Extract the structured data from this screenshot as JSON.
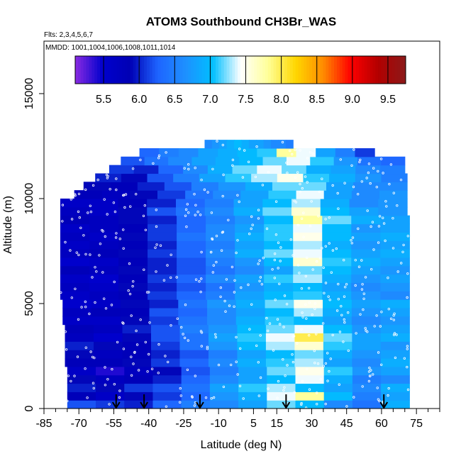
{
  "chart_data": {
    "type": "heatmap",
    "title": "ATOM3 Southbound CH3Br_WAS",
    "flights_label": "Flts: 2,3,4,5,6,7",
    "mmdd_label": "MMDD: 1001,1004,1006,1008,1011,1014",
    "xlabel": "Latitude (deg N)",
    "ylabel": "Altitude (m)",
    "xlim": [
      -85,
      85
    ],
    "ylim": [
      0,
      17500
    ],
    "x_ticks": [
      -85,
      -70,
      -55,
      -40,
      -25,
      -10,
      5,
      15,
      30,
      45,
      60,
      75
    ],
    "x_tick_labels": [
      "-85",
      "-70",
      "-55",
      "-40",
      "-25",
      "-10",
      "5",
      "15",
      "30",
      "45",
      "60",
      "75"
    ],
    "y_ticks": [
      0,
      5000,
      10000,
      15000
    ],
    "y_tick_labels": [
      "0",
      "5000",
      "10000",
      "15000"
    ],
    "colorbar": {
      "min": 5.1,
      "max": 9.75,
      "ticks": [
        5.5,
        6.0,
        6.5,
        7.0,
        7.5,
        8.0,
        8.5,
        9.0,
        9.5
      ],
      "tick_labels": [
        "5.5",
        "6.0",
        "6.5",
        "7.0",
        "7.5",
        "8.0",
        "8.5",
        "9.0",
        "9.5"
      ],
      "colors": [
        "#8a2be2",
        "#0000cd",
        "#0000b4",
        "#1e64ff",
        "#1e90ff",
        "#00bfff",
        "#ffffff",
        "#ffff99",
        "#ffd700",
        "#ff8c00",
        "#ff0000",
        "#b20000",
        "#8b1a1a"
      ]
    },
    "arrow_latitudes": [
      -54,
      -42,
      -18,
      19,
      61
    ],
    "bands": [
      {
        "alt": 200,
        "lat_min": -75,
        "lat_max": 72,
        "values": [
          6.2,
          6.1,
          6.0,
          6.3,
          6.5,
          6.6,
          6.8,
          7.2,
          7.0,
          6.6,
          6.4,
          6.9
        ]
      },
      {
        "alt": 600,
        "lat_min": -75,
        "lat_max": 72,
        "values": [
          5.8,
          5.6,
          5.9,
          6.1,
          6.3,
          6.7,
          6.9,
          7.4,
          7.8,
          7.0,
          6.5,
          6.8
        ]
      },
      {
        "alt": 1000,
        "lat_min": -75,
        "lat_max": 72,
        "values": [
          6.0,
          5.9,
          6.1,
          6.2,
          6.4,
          6.8,
          7.1,
          7.3,
          7.0,
          6.8,
          6.6,
          6.9
        ]
      },
      {
        "alt": 1400,
        "lat_min": -75,
        "lat_max": 72,
        "values": [
          5.9,
          5.7,
          5.8,
          6.0,
          6.3,
          6.6,
          6.8,
          7.0,
          7.4,
          6.9,
          6.5,
          6.6
        ]
      },
      {
        "alt": 1800,
        "lat_min": -75,
        "lat_max": 72,
        "values": [
          5.6,
          5.4,
          5.7,
          5.9,
          6.2,
          6.5,
          6.8,
          7.2,
          7.5,
          7.1,
          6.7,
          6.8
        ]
      },
      {
        "alt": 2200,
        "lat_min": -76,
        "lat_max": 72,
        "values": [
          5.8,
          5.8,
          5.9,
          6.1,
          6.3,
          6.6,
          6.9,
          7.1,
          7.3,
          6.8,
          6.6,
          6.9
        ]
      },
      {
        "alt": 2600,
        "lat_min": -76,
        "lat_max": 72,
        "values": [
          5.9,
          5.7,
          5.8,
          6.0,
          6.2,
          6.5,
          6.8,
          7.0,
          7.2,
          6.9,
          6.7,
          6.8
        ]
      },
      {
        "alt": 3000,
        "lat_min": -76,
        "lat_max": 72,
        "values": [
          6.0,
          5.9,
          5.8,
          6.1,
          6.4,
          6.7,
          7.0,
          7.3,
          7.6,
          7.1,
          6.8,
          6.7
        ]
      },
      {
        "alt": 3400,
        "lat_min": -76,
        "lat_max": 72,
        "values": [
          5.7,
          5.5,
          5.9,
          6.2,
          6.4,
          6.8,
          7.1,
          7.4,
          8.0,
          7.2,
          6.8,
          6.9
        ]
      },
      {
        "alt": 3800,
        "lat_min": -76,
        "lat_max": 72,
        "values": [
          5.8,
          5.7,
          6.0,
          6.2,
          6.5,
          6.7,
          7.0,
          7.2,
          7.4,
          7.0,
          6.7,
          6.8
        ]
      },
      {
        "alt": 4200,
        "lat_min": -77,
        "lat_max": 72,
        "values": [
          5.6,
          5.6,
          5.9,
          6.1,
          6.4,
          6.6,
          6.9,
          7.1,
          7.0,
          6.8,
          6.6,
          6.7
        ]
      },
      {
        "alt": 4600,
        "lat_min": -77,
        "lat_max": 72,
        "values": [
          5.7,
          5.8,
          5.8,
          6.2,
          6.3,
          6.6,
          6.8,
          7.0,
          7.3,
          6.9,
          6.7,
          6.8
        ]
      },
      {
        "alt": 5000,
        "lat_min": -77,
        "lat_max": 72,
        "values": [
          5.5,
          5.6,
          5.9,
          6.0,
          6.4,
          6.7,
          6.9,
          7.2,
          7.5,
          7.0,
          6.8,
          6.9
        ]
      },
      {
        "alt": 5400,
        "lat_min": -78,
        "lat_max": 72,
        "values": [
          5.6,
          5.7,
          5.8,
          6.1,
          6.3,
          6.5,
          6.8,
          7.0,
          7.1,
          6.9,
          6.7,
          6.6
        ]
      },
      {
        "alt": 5800,
        "lat_min": -78,
        "lat_max": 72,
        "values": [
          5.7,
          5.6,
          5.9,
          6.0,
          6.2,
          6.4,
          6.7,
          6.9,
          7.0,
          6.8,
          6.6,
          6.7
        ]
      },
      {
        "alt": 6200,
        "lat_min": -78,
        "lat_max": 72,
        "values": [
          5.6,
          5.5,
          5.8,
          6.1,
          6.3,
          6.6,
          6.8,
          7.1,
          7.3,
          6.9,
          6.7,
          6.8
        ]
      },
      {
        "alt": 6600,
        "lat_min": -78,
        "lat_max": 72,
        "values": [
          5.8,
          5.7,
          5.9,
          6.0,
          6.2,
          6.4,
          6.6,
          6.8,
          7.2,
          7.0,
          6.8,
          6.7
        ]
      },
      {
        "alt": 7000,
        "lat_min": -78,
        "lat_max": 72,
        "values": [
          5.5,
          5.6,
          5.8,
          6.0,
          6.2,
          6.5,
          6.7,
          7.0,
          7.6,
          7.1,
          6.9,
          6.8
        ]
      },
      {
        "alt": 7400,
        "lat_min": -78,
        "lat_max": 72,
        "values": [
          5.7,
          5.8,
          5.9,
          6.1,
          6.3,
          6.6,
          6.9,
          7.2,
          7.4,
          7.0,
          6.8,
          6.9
        ]
      },
      {
        "alt": 7800,
        "lat_min": -78,
        "lat_max": 72,
        "values": [
          5.6,
          5.7,
          5.8,
          6.0,
          6.3,
          6.5,
          6.8,
          7.0,
          7.3,
          6.9,
          6.7,
          6.8
        ]
      },
      {
        "alt": 8200,
        "lat_min": -78,
        "lat_max": 72,
        "values": [
          5.7,
          5.6,
          5.9,
          6.1,
          6.4,
          6.6,
          6.9,
          7.1,
          7.5,
          7.0,
          6.8,
          6.9
        ]
      },
      {
        "alt": 8600,
        "lat_min": -78,
        "lat_max": 72,
        "values": [
          5.6,
          5.7,
          5.8,
          6.1,
          6.3,
          6.6,
          6.8,
          7.1,
          7.4,
          7.0,
          6.7,
          6.8
        ]
      },
      {
        "alt": 9000,
        "lat_min": -78,
        "lat_max": 72,
        "values": [
          5.8,
          5.7,
          5.9,
          6.0,
          6.3,
          6.5,
          6.7,
          7.0,
          7.8,
          7.2,
          6.9,
          6.8
        ]
      },
      {
        "alt": 9400,
        "lat_min": -78,
        "lat_max": 71,
        "values": [
          5.7,
          5.6,
          5.9,
          6.2,
          6.4,
          6.6,
          6.9,
          7.2,
          7.6,
          7.0,
          6.8,
          6.7
        ]
      },
      {
        "alt": 9800,
        "lat_min": -78,
        "lat_max": 71,
        "values": [
          5.6,
          5.6,
          5.8,
          6.0,
          6.3,
          6.5,
          6.8,
          7.0,
          7.3,
          6.9,
          6.6,
          6.7
        ]
      },
      {
        "alt": 10200,
        "lat_min": -72,
        "lat_max": 71,
        "values": [
          5.8,
          5.7,
          5.9,
          6.1,
          6.4,
          6.6,
          6.8,
          7.1,
          7.4,
          6.8,
          6.6,
          6.7
        ]
      },
      {
        "alt": 10600,
        "lat_min": -68,
        "lat_max": 71,
        "values": [
          5.9,
          5.8,
          6.0,
          6.2,
          6.5,
          6.7,
          6.9,
          7.2,
          7.2,
          6.8,
          6.6,
          6.6
        ]
      },
      {
        "alt": 11000,
        "lat_min": -63,
        "lat_max": 71,
        "values": [
          6.0,
          5.9,
          6.2,
          6.5,
          6.8,
          7.1,
          7.3,
          7.5,
          7.1,
          6.9,
          6.7,
          6.5
        ]
      },
      {
        "alt": 11400,
        "lat_min": -57,
        "lat_max": 70,
        "values": [
          6.1,
          6.0,
          6.3,
          6.6,
          6.9,
          7.2,
          7.4,
          7.2,
          6.9,
          6.8,
          6.6,
          6.5
        ]
      },
      {
        "alt": 11800,
        "lat_min": -52,
        "lat_max": 70,
        "values": [
          6.2,
          6.4,
          6.6,
          6.8,
          6.9,
          7.0,
          7.2,
          7.4,
          7.1,
          6.7,
          6.4,
          6.3
        ]
      },
      {
        "alt": 12200,
        "lat_min": -44,
        "lat_max": 57,
        "values": [
          6.3,
          6.5,
          6.6,
          6.8,
          6.9,
          7.0,
          7.1,
          7.8,
          7.4,
          6.8,
          6.5,
          6.1
        ]
      },
      {
        "alt": 12600,
        "lat_min": -16,
        "lat_max": 22,
        "values": [
          6.6,
          6.7,
          6.8,
          6.9,
          7.0,
          6.9,
          6.8,
          6.8,
          6.7,
          6.6,
          6.6,
          6.5
        ]
      }
    ]
  }
}
